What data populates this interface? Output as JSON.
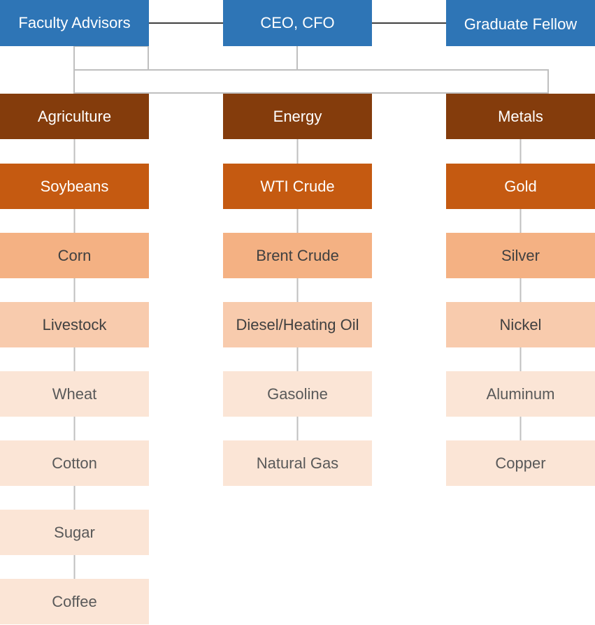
{
  "leadership": {
    "left": "Faculty Advisors",
    "center": "CEO, CFO",
    "right": "Graduate Fellow"
  },
  "columns": [
    {
      "header": "Agriculture",
      "items": [
        "Soybeans",
        "Corn",
        "Livestock",
        "Wheat",
        "Cotton",
        "Sugar",
        "Coffee"
      ]
    },
    {
      "header": "Energy",
      "items": [
        "WTI Crude",
        "Brent Crude",
        "Diesel/Heating Oil",
        "Gasoline",
        "Natural Gas"
      ]
    },
    {
      "header": "Metals",
      "items": [
        "Gold",
        "Silver",
        "Nickel",
        "Aluminum",
        "Copper"
      ]
    }
  ],
  "colors": {
    "leadership": "#2e75b6",
    "header": "#843c0c",
    "level2": "#c55a11",
    "level3": "#f4b183",
    "level4": "#f8cbad",
    "level5": "#fbe5d6",
    "connector": "#bfbfbf"
  }
}
